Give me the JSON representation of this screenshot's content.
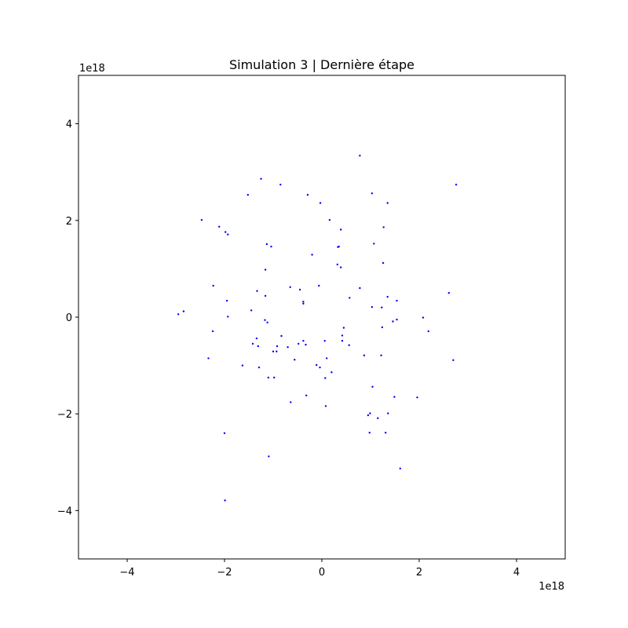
{
  "chart_data": {
    "type": "scatter",
    "title": "Simulation 3 | Dernière étape",
    "xlabel": "",
    "ylabel": "",
    "xlim": [
      -5,
      5
    ],
    "ylim": [
      -5,
      5
    ],
    "x_offset_label": "1e18",
    "y_offset_label": "1e18",
    "x_ticks": [
      -4,
      -2,
      0,
      2,
      4
    ],
    "y_ticks": [
      -4,
      -2,
      0,
      2,
      4
    ],
    "x_tick_labels": [
      "−4",
      "−2",
      "0",
      "2",
      "4"
    ],
    "y_tick_labels": [
      "−4",
      "−2",
      "0",
      "2",
      "4"
    ],
    "grid": false,
    "marker_color": "#0000ff",
    "points": [
      [
        0.78,
        3.34
      ],
      [
        -1.25,
        2.86
      ],
      [
        -0.85,
        2.74
      ],
      [
        -1.52,
        2.53
      ],
      [
        -0.29,
        2.53
      ],
      [
        1.03,
        2.56
      ],
      [
        2.76,
        2.74
      ],
      [
        -0.03,
        2.36
      ],
      [
        1.35,
        2.36
      ],
      [
        -2.47,
        2.01
      ],
      [
        -2.11,
        1.87
      ],
      [
        0.16,
        2.01
      ],
      [
        -1.98,
        1.76
      ],
      [
        -1.93,
        1.71
      ],
      [
        1.27,
        1.86
      ],
      [
        0.39,
        1.81
      ],
      [
        -1.13,
        1.51
      ],
      [
        -1.04,
        1.46
      ],
      [
        1.07,
        1.52
      ],
      [
        0.35,
        1.46
      ],
      [
        0.33,
        1.45
      ],
      [
        -0.2,
        1.29
      ],
      [
        0.32,
        1.09
      ],
      [
        0.39,
        1.03
      ],
      [
        1.26,
        1.12
      ],
      [
        -1.16,
        0.98
      ],
      [
        -2.23,
        0.65
      ],
      [
        -0.65,
        0.62
      ],
      [
        -0.06,
        0.65
      ],
      [
        0.78,
        0.6
      ],
      [
        -1.33,
        0.54
      ],
      [
        -0.45,
        0.57
      ],
      [
        -1.16,
        0.44
      ],
      [
        0.57,
        0.4
      ],
      [
        1.35,
        0.42
      ],
      [
        2.61,
        0.5
      ],
      [
        -1.95,
        0.34
      ],
      [
        -0.38,
        0.32
      ],
      [
        -0.38,
        0.28
      ],
      [
        1.54,
        0.34
      ],
      [
        -2.84,
        0.12
      ],
      [
        -2.95,
        0.06
      ],
      [
        -1.45,
        0.14
      ],
      [
        1.03,
        0.21
      ],
      [
        1.23,
        0.2
      ],
      [
        -1.93,
        0.01
      ],
      [
        -1.17,
        -0.06
      ],
      [
        -1.12,
        -0.11
      ],
      [
        1.46,
        -0.09
      ],
      [
        1.54,
        -0.05
      ],
      [
        2.08,
        -0.01
      ],
      [
        0.45,
        -0.22
      ],
      [
        1.24,
        -0.21
      ],
      [
        -2.24,
        -0.29
      ],
      [
        2.19,
        -0.29
      ],
      [
        0.42,
        -0.38
      ],
      [
        -1.34,
        -0.44
      ],
      [
        -0.83,
        -0.39
      ],
      [
        0.42,
        -0.49
      ],
      [
        0.06,
        -0.49
      ],
      [
        -1.42,
        -0.55
      ],
      [
        -0.48,
        -0.55
      ],
      [
        -0.38,
        -0.49
      ],
      [
        0.56,
        -0.58
      ],
      [
        -1.31,
        -0.6
      ],
      [
        -0.92,
        -0.6
      ],
      [
        -0.7,
        -0.62
      ],
      [
        -0.33,
        -0.57
      ],
      [
        -1.0,
        -0.71
      ],
      [
        -0.93,
        -0.71
      ],
      [
        0.87,
        -0.79
      ],
      [
        1.22,
        -0.79
      ],
      [
        -2.33,
        -0.85
      ],
      [
        0.1,
        -0.85
      ],
      [
        -0.56,
        -0.88
      ],
      [
        2.7,
        -0.89
      ],
      [
        -1.63,
        -1.0
      ],
      [
        -0.11,
        -0.99
      ],
      [
        -1.29,
        -1.04
      ],
      [
        -0.04,
        -1.04
      ],
      [
        0.2,
        -1.14
      ],
      [
        -1.1,
        -1.25
      ],
      [
        -0.98,
        -1.25
      ],
      [
        0.07,
        -1.26
      ],
      [
        1.04,
        -1.44
      ],
      [
        -0.32,
        -1.62
      ],
      [
        1.49,
        -1.65
      ],
      [
        1.96,
        -1.66
      ],
      [
        -0.64,
        -1.76
      ],
      [
        0.08,
        -1.84
      ],
      [
        1.36,
        -1.99
      ],
      [
        0.99,
        -1.99
      ],
      [
        0.95,
        -2.03
      ],
      [
        1.15,
        -2.09
      ],
      [
        -2.0,
        -2.4
      ],
      [
        0.98,
        -2.39
      ],
      [
        1.31,
        -2.39
      ],
      [
        -1.09,
        -2.88
      ],
      [
        1.61,
        -3.13
      ],
      [
        -1.99,
        -3.79
      ]
    ]
  }
}
